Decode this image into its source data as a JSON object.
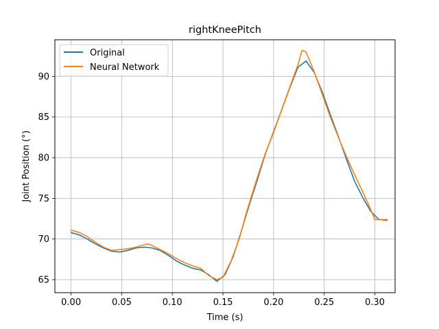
{
  "chart_data": {
    "type": "line",
    "title": "rightKneePitch",
    "xlabel": "Time (s)",
    "ylabel": "Joint Position (°)",
    "xlim": [
      -0.016,
      0.32
    ],
    "ylim": [
      63.4,
      94.5
    ],
    "xticks": [
      0.0,
      0.05,
      0.1,
      0.15,
      0.2,
      0.25,
      0.3
    ],
    "xtick_labels": [
      "0.00",
      "0.05",
      "0.10",
      "0.15",
      "0.20",
      "0.25",
      "0.30"
    ],
    "yticks": [
      65,
      70,
      75,
      80,
      85,
      90
    ],
    "ytick_labels": [
      "65",
      "70",
      "75",
      "80",
      "85",
      "90"
    ],
    "grid": true,
    "legend": "top-left",
    "series": [
      {
        "name": "Original",
        "color": "#1f77b4",
        "points": [
          [
            0.0,
            70.8
          ],
          [
            0.008,
            70.5
          ],
          [
            0.016,
            70.0
          ],
          [
            0.024,
            69.4
          ],
          [
            0.032,
            68.9
          ],
          [
            0.04,
            68.5
          ],
          [
            0.048,
            68.4
          ],
          [
            0.056,
            68.6
          ],
          [
            0.064,
            68.9
          ],
          [
            0.072,
            69.0
          ],
          [
            0.08,
            68.9
          ],
          [
            0.088,
            68.6
          ],
          [
            0.096,
            68.0
          ],
          [
            0.104,
            67.3
          ],
          [
            0.112,
            66.8
          ],
          [
            0.12,
            66.4
          ],
          [
            0.128,
            66.2
          ],
          [
            0.136,
            65.6
          ],
          [
            0.144,
            64.8
          ],
          [
            0.152,
            65.6
          ],
          [
            0.16,
            67.8
          ],
          [
            0.168,
            70.9
          ],
          [
            0.176,
            74.2
          ],
          [
            0.184,
            77.3
          ],
          [
            0.192,
            80.5
          ],
          [
            0.2,
            83.2
          ],
          [
            0.208,
            85.9
          ],
          [
            0.216,
            88.6
          ],
          [
            0.224,
            91.1
          ],
          [
            0.232,
            91.9
          ],
          [
            0.24,
            90.5
          ],
          [
            0.248,
            88.1
          ],
          [
            0.256,
            85.3
          ],
          [
            0.264,
            82.6
          ],
          [
            0.272,
            79.8
          ],
          [
            0.28,
            77.1
          ],
          [
            0.288,
            75.1
          ],
          [
            0.296,
            73.4
          ],
          [
            0.304,
            72.4
          ],
          [
            0.312,
            72.3
          ]
        ]
      },
      {
        "name": "Neural Network",
        "color": "#ff7f0e",
        "points": [
          [
            0.0,
            71.1
          ],
          [
            0.008,
            70.8
          ],
          [
            0.016,
            70.3
          ],
          [
            0.024,
            69.6
          ],
          [
            0.032,
            69.0
          ],
          [
            0.04,
            68.6
          ],
          [
            0.048,
            68.7
          ],
          [
            0.056,
            68.8
          ],
          [
            0.064,
            69.0
          ],
          [
            0.072,
            69.3
          ],
          [
            0.076,
            69.4
          ],
          [
            0.08,
            69.2
          ],
          [
            0.088,
            68.7
          ],
          [
            0.096,
            68.2
          ],
          [
            0.104,
            67.6
          ],
          [
            0.112,
            67.1
          ],
          [
            0.12,
            66.7
          ],
          [
            0.128,
            66.4
          ],
          [
            0.136,
            65.5
          ],
          [
            0.144,
            65.0
          ],
          [
            0.15,
            65.3
          ],
          [
            0.158,
            67.3
          ],
          [
            0.166,
            70.0
          ],
          [
            0.174,
            73.6
          ],
          [
            0.184,
            77.6
          ],
          [
            0.192,
            80.6
          ],
          [
            0.2,
            83.1
          ],
          [
            0.208,
            85.9
          ],
          [
            0.216,
            88.7
          ],
          [
            0.224,
            91.4
          ],
          [
            0.228,
            93.2
          ],
          [
            0.232,
            93.0
          ],
          [
            0.24,
            90.6
          ],
          [
            0.248,
            87.8
          ],
          [
            0.256,
            85.0
          ],
          [
            0.264,
            82.5
          ],
          [
            0.272,
            80.1
          ],
          [
            0.28,
            77.9
          ],
          [
            0.288,
            75.8
          ],
          [
            0.296,
            73.6
          ],
          [
            0.3,
            72.4
          ],
          [
            0.312,
            72.4
          ]
        ]
      }
    ]
  }
}
